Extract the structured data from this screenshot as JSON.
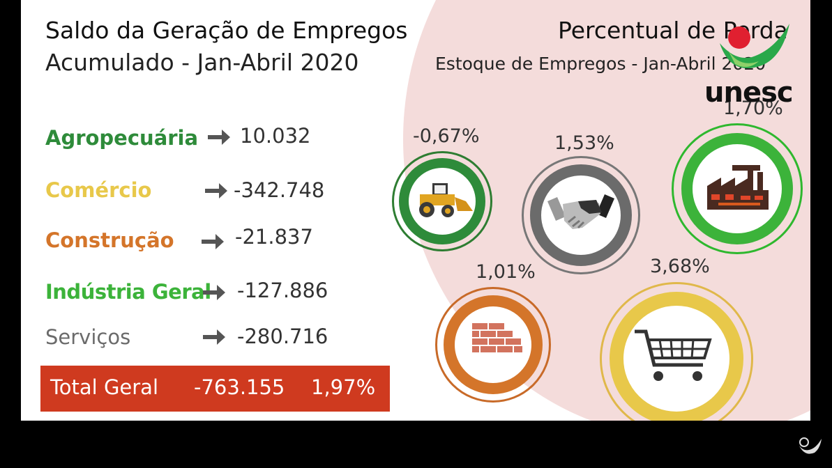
{
  "header_left": {
    "title": "Saldo da Geração de Empregos",
    "subtitle": "Acumulado - Jan-Abril 2020"
  },
  "header_right": {
    "title": "Percentual de Perda",
    "subtitle": "Estoque de Empregos - Jan-Abril 2020"
  },
  "sectors": [
    {
      "name": "Agropecuária",
      "value": "10.032",
      "color": "#2e8b3a"
    },
    {
      "name": "Comércio",
      "value": "-342.748",
      "color": "#e8c84a"
    },
    {
      "name": "Construção",
      "value": "-21.837",
      "color": "#d4752a"
    },
    {
      "name": "Indústria Geral",
      "value": "-127.886",
      "color": "#3cb33a"
    },
    {
      "name": "Serviços",
      "value": "-280.716",
      "color": "#6b6b6b"
    }
  ],
  "total": {
    "label": "Total Geral",
    "value": "-763.155",
    "percent": "1,97%"
  },
  "percent_circles": {
    "agro": {
      "percent": "-0,67%",
      "icon": "tractor-icon"
    },
    "servicos": {
      "percent": "1,53%",
      "icon": "handshake-icon"
    },
    "industria": {
      "percent": "1,70%",
      "icon": "factory-icon"
    },
    "construcao": {
      "percent": "1,01%",
      "icon": "bricks-icon"
    },
    "comercio": {
      "percent": "3,68%",
      "icon": "shopping-cart-icon"
    }
  },
  "logo": {
    "text": "unesc"
  }
}
